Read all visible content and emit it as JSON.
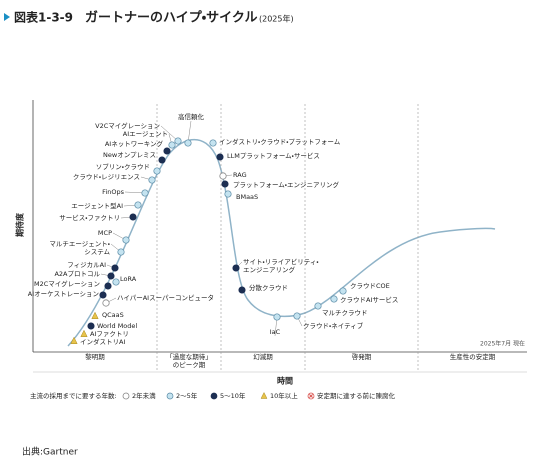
{
  "header": {
    "label": "図表1-3-9",
    "title": "ガートナーのハイプ・サイクル",
    "subtitle": "(2025年)"
  },
  "axes": {
    "y": "期待度",
    "x": "時間"
  },
  "note": "2025年7月 現在",
  "phases": [
    [
      "黎明期"
    ],
    [
      "「過度な期待」",
      "のピーク期"
    ],
    [
      "幻滅期"
    ],
    [
      "啓発期"
    ],
    [
      "生産性の安定期"
    ]
  ],
  "legend": {
    "title": "主流の採用までに要する年数:",
    "items": [
      "2年未満",
      "2～5年",
      "5～10年",
      "10年以上",
      "安定期に達する前に陳腐化"
    ]
  },
  "nodes": [
    {
      "label": [
        "インダストリAI"
      ],
      "category": 3
    },
    {
      "label": [
        "AIファクトリ"
      ],
      "category": 3
    },
    {
      "label": [
        "World Model"
      ],
      "category": 2
    },
    {
      "label": [
        "QCaaS"
      ],
      "category": 3
    },
    {
      "label": [
        "ハイパーAIスーパーコンピュータ"
      ],
      "category": 0
    },
    {
      "label": [
        "LoRA"
      ],
      "category": 1
    },
    {
      "label": [
        "AIオーケストレーション"
      ],
      "category": 2
    },
    {
      "label": [
        "M2Cマイグレーション"
      ],
      "category": 2
    },
    {
      "label": [
        "A2Aプロトコル"
      ],
      "category": 2
    },
    {
      "label": [
        "フィジカルAI"
      ],
      "category": 2
    },
    {
      "label": [
        "マルチエージェント・",
        "システム"
      ],
      "category": 1
    },
    {
      "label": [
        "MCP"
      ],
      "category": 1
    },
    {
      "label": [
        "サービス・ファクトリ"
      ],
      "category": 2
    },
    {
      "label": [
        "エージェント型AI"
      ],
      "category": 1
    },
    {
      "label": [
        "FinOps"
      ],
      "category": 1
    },
    {
      "label": [
        "クラウド・レジリエンス"
      ],
      "category": 1
    },
    {
      "label": [
        "ソブリン・クラウド"
      ],
      "category": 1
    },
    {
      "label": [
        "Newオンプレミス"
      ],
      "category": 2
    },
    {
      "label": [
        "AIネットワーキング"
      ],
      "category": 2
    },
    {
      "label": [
        "AIエージェント"
      ],
      "category": 1
    },
    {
      "label": [
        "V2Cマイグレーション"
      ],
      "category": 1
    },
    {
      "label": [
        "高信頼化"
      ],
      "category": 1
    },
    {
      "label": [
        "インダストリ・クラウド・プラットフォーム"
      ],
      "category": 1
    },
    {
      "label": [
        "LLMプラットフォーム・サービス"
      ],
      "category": 2
    },
    {
      "label": [
        "RAG"
      ],
      "category": 0
    },
    {
      "label": [
        "プラットフォーム・エンジニアリング"
      ],
      "category": 2
    },
    {
      "label": [
        "BMaaS"
      ],
      "category": 1
    },
    {
      "label": [
        "サイト・リライアビリティ・",
        "エンジニアリング"
      ],
      "category": 2
    },
    {
      "label": [
        "分散クラウド"
      ],
      "category": 2
    },
    {
      "label": [
        "IaC"
      ],
      "category": 1
    },
    {
      "label": [
        "クラウド・ネイティブ"
      ],
      "category": 1
    },
    {
      "label": [
        "マルチクラウド"
      ],
      "category": 1
    },
    {
      "label": [
        "クラウドAIサービス"
      ],
      "category": 1
    },
    {
      "label": [
        "クラウドCOE"
      ],
      "category": 1
    }
  ],
  "source": "出典:Gartner"
}
